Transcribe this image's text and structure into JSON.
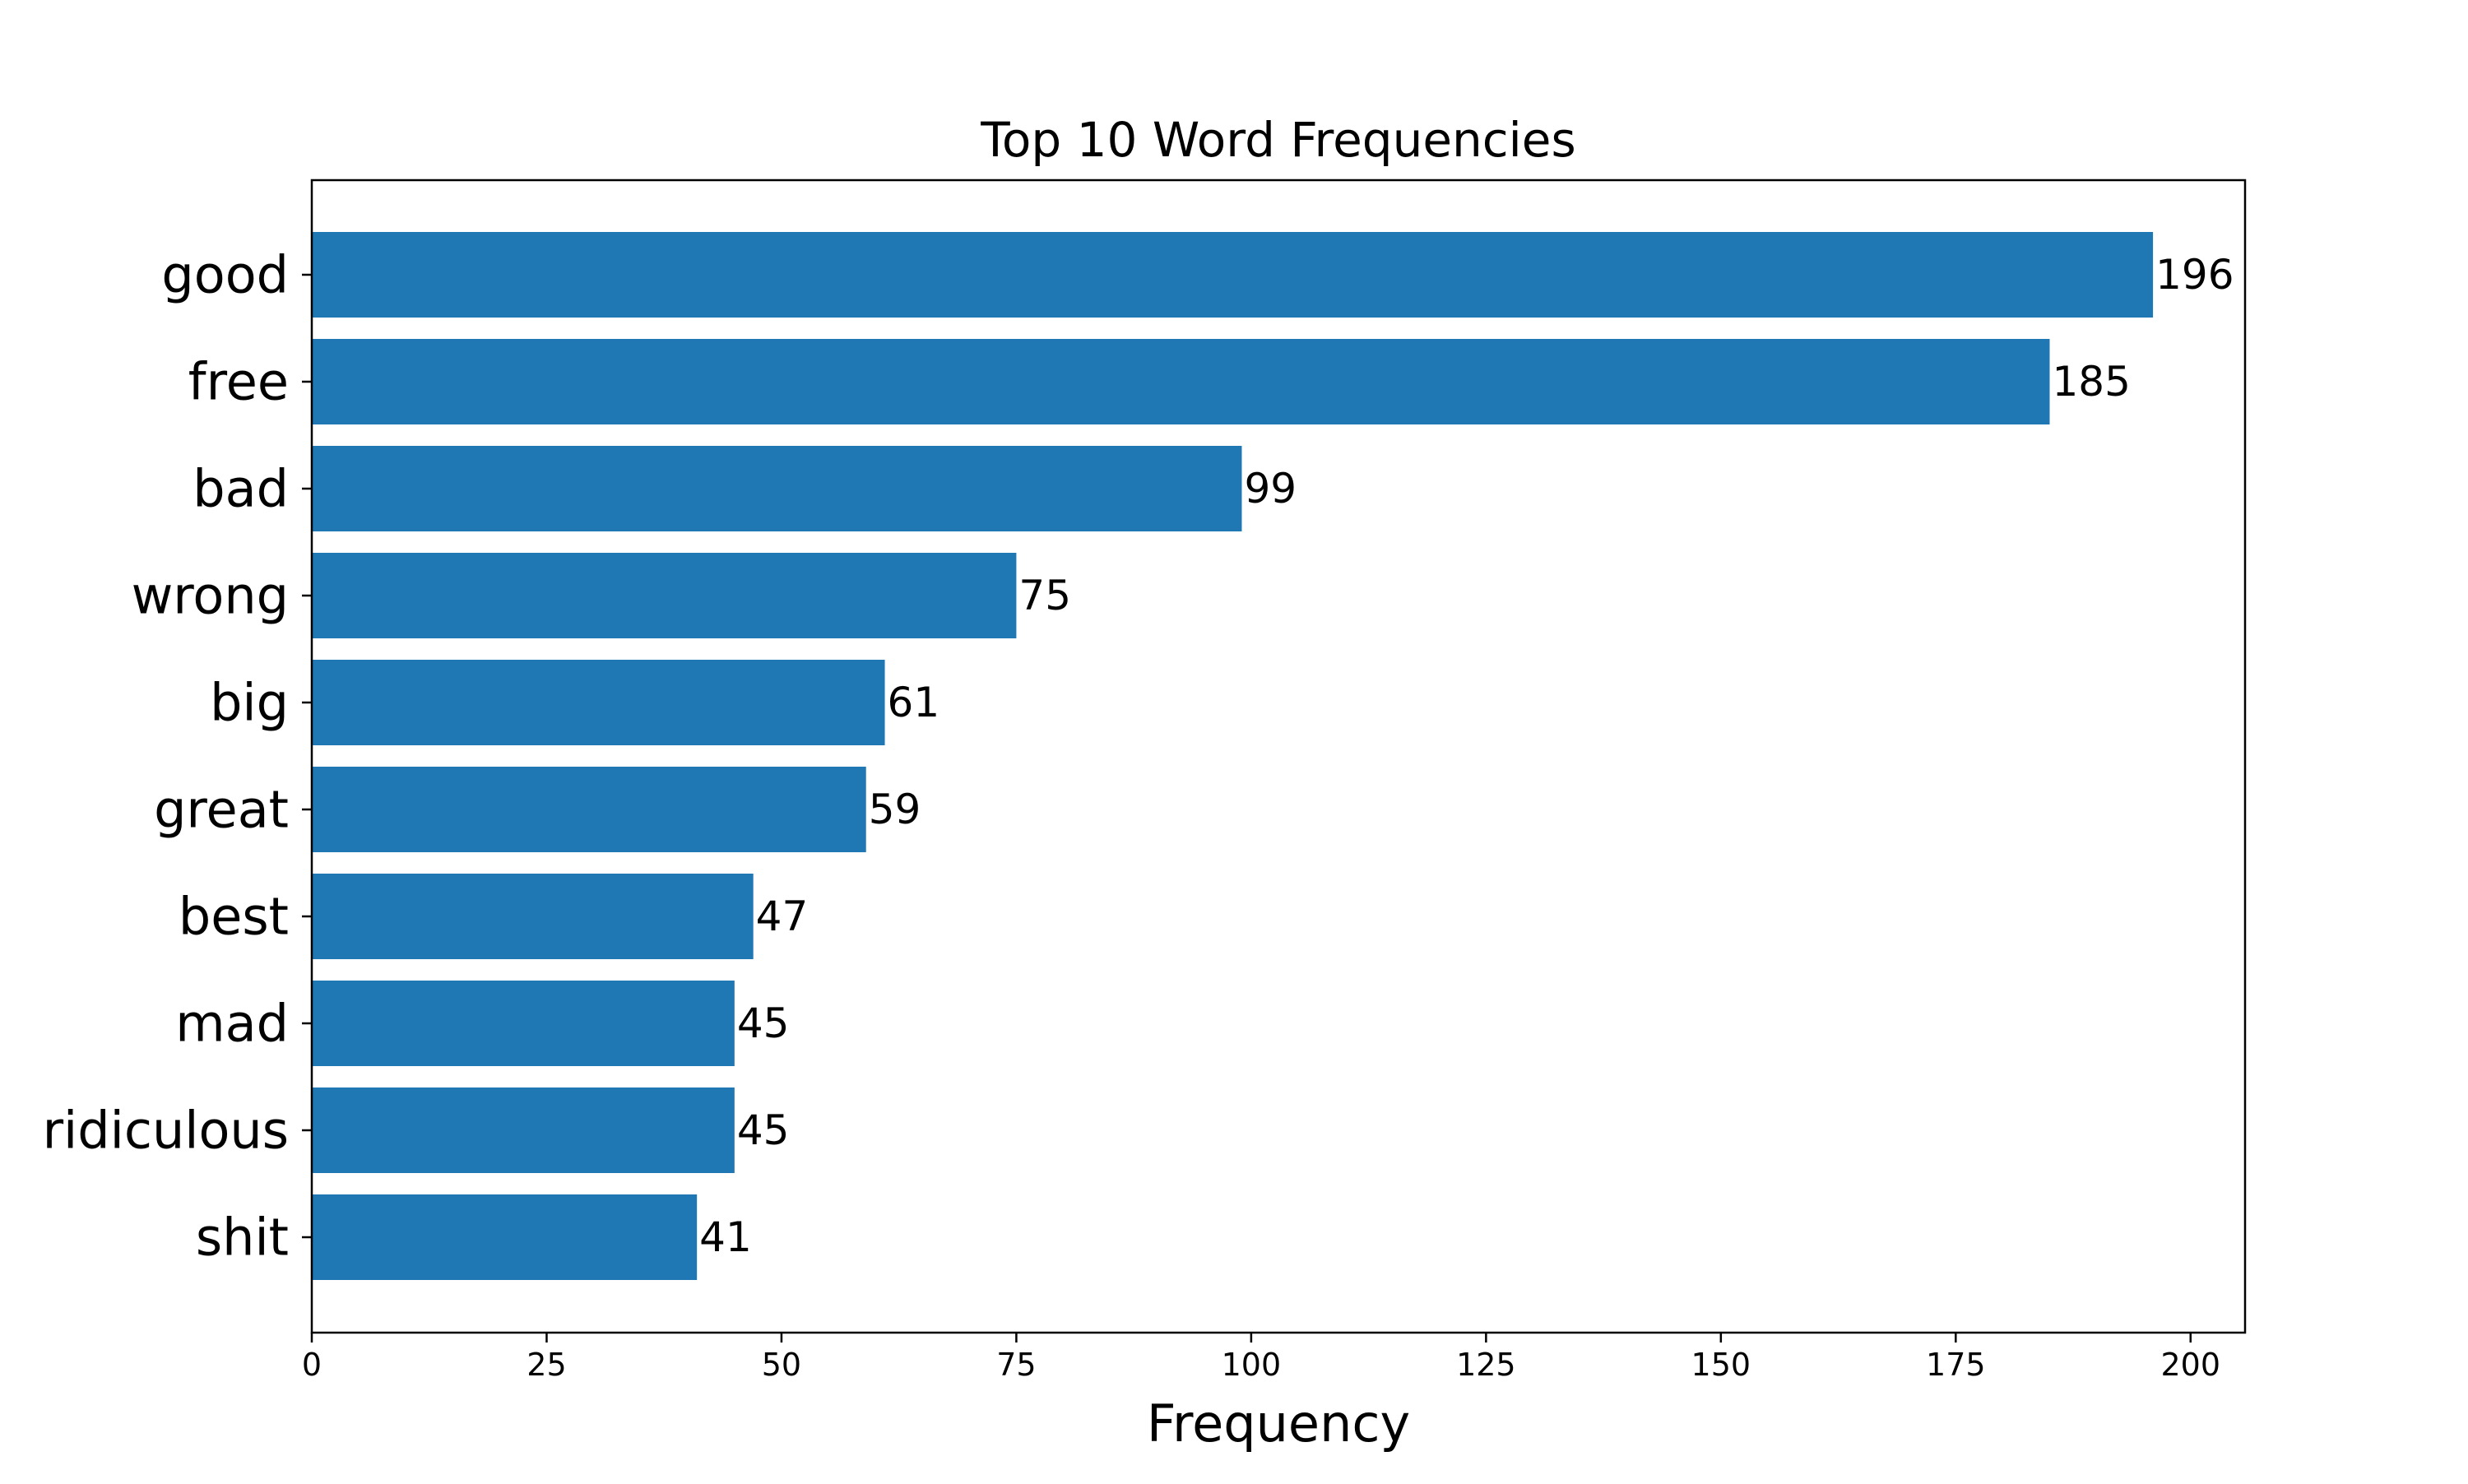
{
  "chart_data": {
    "type": "bar",
    "orientation": "horizontal",
    "title": "Top 10 Word Frequencies",
    "xlabel": "Frequency",
    "ylabel": "",
    "categories": [
      "good",
      "free",
      "bad",
      "wrong",
      "big",
      "great",
      "best",
      "mad",
      "ridiculous",
      "shit"
    ],
    "values": [
      196,
      185,
      99,
      75,
      61,
      59,
      47,
      45,
      45,
      41
    ],
    "xlim": [
      0,
      205.8
    ],
    "xticks": [
      0,
      25,
      50,
      75,
      100,
      125,
      150,
      175,
      200
    ],
    "grid": false,
    "legend": "none",
    "bar_color": "#1f77b4",
    "data_labels": true
  }
}
